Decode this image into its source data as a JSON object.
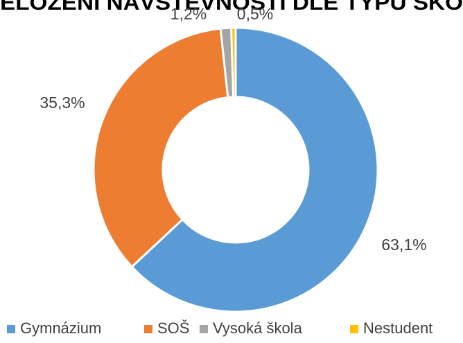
{
  "chart_data": {
    "type": "donut",
    "title": "ELOŽENÍ NÁVŠTĚVNOSTI DLE TYPU ŠKO",
    "categories": [
      "Gymnázium",
      "SOŠ",
      "Vysoká škola",
      "Nestudent"
    ],
    "values": [
      63.1,
      35.3,
      1.2,
      0.5
    ],
    "value_labels": [
      "63,1%",
      "35,3%",
      "1,2%",
      "0,5%"
    ],
    "colors": [
      "#5b9bd5",
      "#ed7d31",
      "#a5a5a5",
      "#ffc000"
    ],
    "legend": "bottom"
  }
}
